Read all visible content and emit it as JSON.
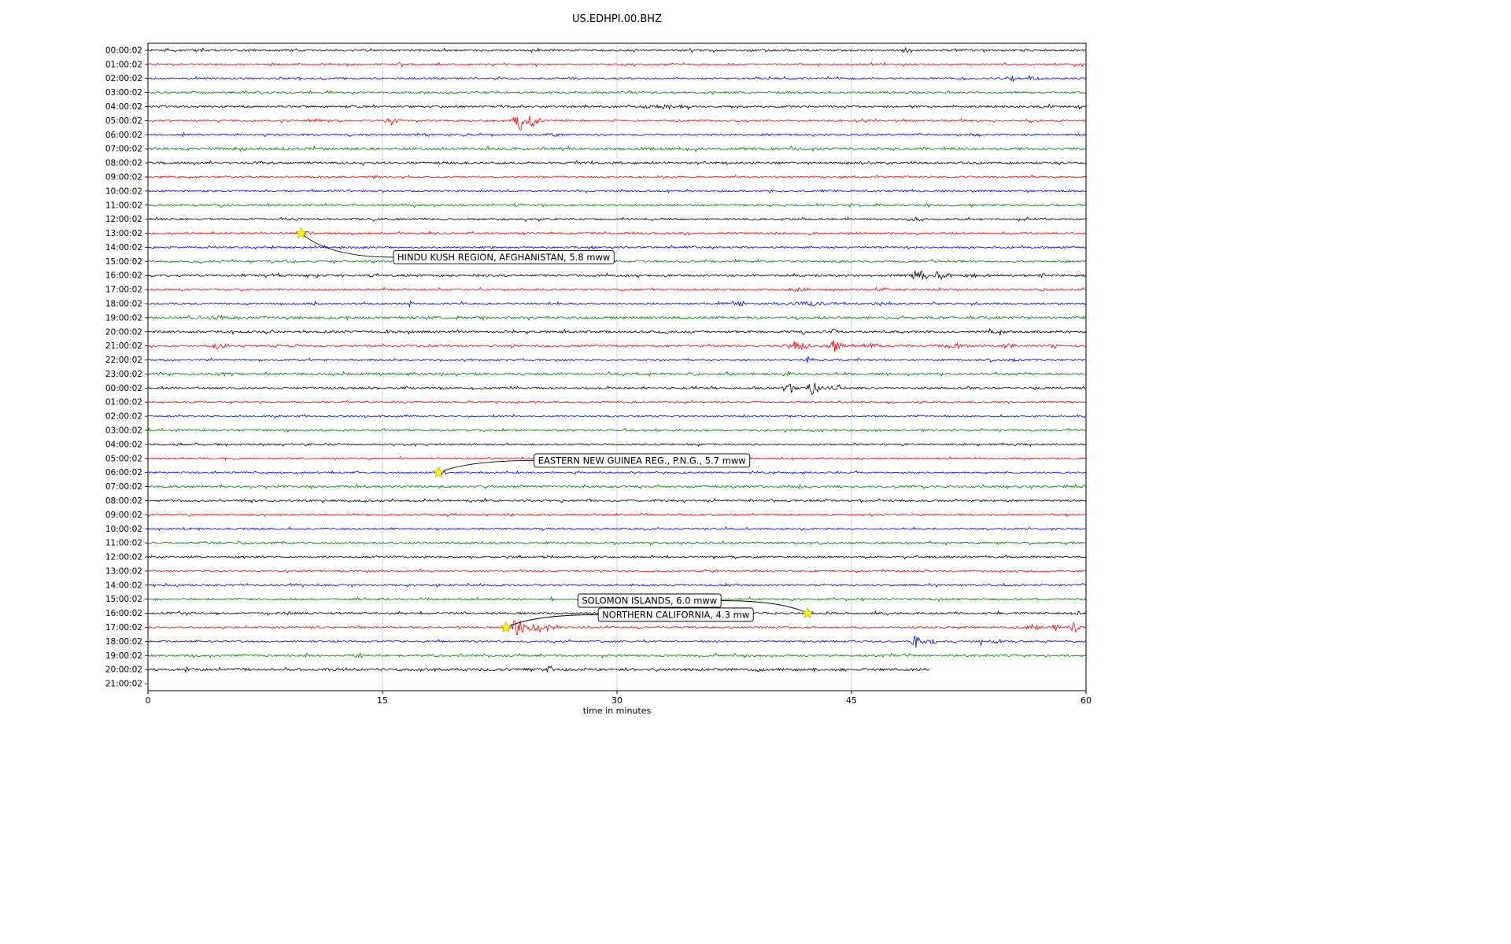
{
  "title": "US.EDHPI.00.BHZ",
  "xlabel": "time in minutes",
  "chart_data": {
    "type": "line",
    "subtype": "seismogram-dayplot",
    "title": "US.EDHPI.00.BHZ",
    "xlabel": "time in minutes",
    "xlim": [
      0,
      60
    ],
    "x_ticks": [
      0,
      15,
      30,
      45,
      60
    ],
    "grid": true,
    "trace_colors_cycle": [
      "#000000",
      "#ff0000",
      "#0000ff",
      "#008000"
    ],
    "star_color": "#ffff00",
    "rows": [
      {
        "label": "00:00:02",
        "color": "#000000",
        "base": 1.2,
        "bursts": [
          {
            "m": 48.6,
            "a": 2.5,
            "s": 0.3
          },
          {
            "m": 56.2,
            "a": 2.0,
            "s": 0.2
          }
        ]
      },
      {
        "label": "01:00:02",
        "color": "#ff0000",
        "base": 1.1,
        "bursts": [
          {
            "m": 16.2,
            "a": 4.0,
            "s": 0.12
          }
        ]
      },
      {
        "label": "02:00:02",
        "color": "#0000ff",
        "base": 1.1,
        "bursts": [
          {
            "m": 55.3,
            "a": 7.0,
            "s": 0.08
          },
          {
            "m": 56.5,
            "a": 3.0,
            "s": 0.3
          }
        ]
      },
      {
        "label": "03:00:02",
        "color": "#008000",
        "base": 1.2,
        "bursts": []
      },
      {
        "label": "04:00:02",
        "color": "#000000",
        "base": 1.2,
        "bursts": [
          {
            "m": 32.5,
            "a": 2.5,
            "s": 1.2
          },
          {
            "m": 34.5,
            "a": 11.0,
            "s": 0.05
          },
          {
            "m": 57.6,
            "a": 3.5,
            "s": 0.25
          },
          {
            "m": 59.4,
            "a": 3.5,
            "s": 0.2
          }
        ]
      },
      {
        "label": "05:00:02",
        "color": "#ff0000",
        "base": 1.1,
        "bursts": [
          {
            "m": 10.5,
            "a": 2.0,
            "s": 0.3
          },
          {
            "m": 15.6,
            "a": 6.0,
            "s": 0.25
          },
          {
            "m": 23.7,
            "a": 15.0,
            "s": 0.22
          },
          {
            "m": 24.6,
            "a": 9.0,
            "s": 0.3
          }
        ]
      },
      {
        "label": "06:00:02",
        "color": "#0000ff",
        "base": 1.1,
        "bursts": [
          {
            "m": 26.0,
            "a": 2.0,
            "s": 0.4
          }
        ]
      },
      {
        "label": "07:00:02",
        "color": "#008000",
        "base": 1.5,
        "bursts": [
          {
            "m": 26.0,
            "a": 2.5,
            "s": 0.8
          }
        ]
      },
      {
        "label": "08:00:02",
        "color": "#000000",
        "base": 1.3,
        "bursts": []
      },
      {
        "label": "09:00:02",
        "color": "#ff0000",
        "base": 1.1,
        "bursts": []
      },
      {
        "label": "10:00:02",
        "color": "#0000ff",
        "base": 1.1,
        "bursts": []
      },
      {
        "label": "11:00:02",
        "color": "#008000",
        "base": 1.2,
        "bursts": []
      },
      {
        "label": "12:00:02",
        "color": "#000000",
        "base": 1.2,
        "bursts": [
          {
            "m": 49.0,
            "a": 2.0,
            "s": 0.3
          }
        ]
      },
      {
        "label": "13:00:02",
        "color": "#ff0000",
        "base": 1.1,
        "bursts": [
          {
            "m": 10.2,
            "a": 2.0,
            "s": 0.3
          }
        ]
      },
      {
        "label": "14:00:02",
        "color": "#0000ff",
        "base": 1.1,
        "bursts": []
      },
      {
        "label": "15:00:02",
        "color": "#008000",
        "base": 1.2,
        "bursts": []
      },
      {
        "label": "16:00:02",
        "color": "#000000",
        "base": 1.3,
        "bursts": [
          {
            "m": 49.4,
            "a": 8.0,
            "s": 0.35
          },
          {
            "m": 50.6,
            "a": 5.0,
            "s": 0.3
          },
          {
            "m": 53.0,
            "a": 2.0,
            "s": 0.5
          },
          {
            "m": 57.2,
            "a": 4.0,
            "s": 0.1
          }
        ]
      },
      {
        "label": "17:00:02",
        "color": "#ff0000",
        "base": 1.1,
        "bursts": [
          {
            "m": 41.6,
            "a": 2.5,
            "s": 0.4
          },
          {
            "m": 47.0,
            "a": 2.5,
            "s": 0.3
          },
          {
            "m": 57.3,
            "a": 2.5,
            "s": 0.2
          }
        ]
      },
      {
        "label": "18:00:02",
        "color": "#0000ff",
        "base": 1.1,
        "bursts": [
          {
            "m": 10.7,
            "a": 4.5,
            "s": 0.07
          },
          {
            "m": 16.8,
            "a": 2.5,
            "s": 0.15
          },
          {
            "m": 37.6,
            "a": 3.5,
            "s": 0.5
          },
          {
            "m": 42.0,
            "a": 2.5,
            "s": 1.2
          },
          {
            "m": 47.0,
            "a": 2.0,
            "s": 0.6
          }
        ]
      },
      {
        "label": "19:00:02",
        "color": "#008000",
        "base": 1.5,
        "bursts": [
          {
            "m": 5.0,
            "a": 2.0,
            "s": 1.0
          },
          {
            "m": 18.2,
            "a": 2.0,
            "s": 0.3
          }
        ]
      },
      {
        "label": "20:00:02",
        "color": "#000000",
        "base": 1.3,
        "bursts": [
          {
            "m": 33.0,
            "a": 2.0,
            "s": 0.3
          },
          {
            "m": 41.9,
            "a": 5.0,
            "s": 0.12
          },
          {
            "m": 43.9,
            "a": 4.0,
            "s": 0.1
          },
          {
            "m": 53.9,
            "a": 5.0,
            "s": 0.12
          },
          {
            "m": 54.6,
            "a": 3.0,
            "s": 0.2
          }
        ]
      },
      {
        "label": "21:00:02",
        "color": "#ff0000",
        "base": 1.2,
        "bursts": [
          {
            "m": 4.5,
            "a": 4.5,
            "s": 0.35
          },
          {
            "m": 41.6,
            "a": 6.0,
            "s": 0.45
          },
          {
            "m": 43.9,
            "a": 7.0,
            "s": 0.35
          },
          {
            "m": 46.3,
            "a": 4.0,
            "s": 0.3
          },
          {
            "m": 51.5,
            "a": 3.0,
            "s": 0.7
          },
          {
            "m": 55.0,
            "a": 3.0,
            "s": 0.4
          },
          {
            "m": 58.0,
            "a": 2.5,
            "s": 0.3
          }
        ]
      },
      {
        "label": "22:00:02",
        "color": "#0000ff",
        "base": 1.1,
        "bursts": [
          {
            "m": 42.2,
            "a": 7.0,
            "s": 0.08
          },
          {
            "m": 53.9,
            "a": 4.0,
            "s": 0.12
          },
          {
            "m": 55.5,
            "a": 2.0,
            "s": 0.3
          }
        ]
      },
      {
        "label": "23:00:02",
        "color": "#008000",
        "base": 1.3,
        "bursts": [
          {
            "m": 5.0,
            "a": 2.0,
            "s": 0.5
          },
          {
            "m": 17.0,
            "a": 2.0,
            "s": 0.4
          },
          {
            "m": 41.0,
            "a": 2.5,
            "s": 0.4
          }
        ]
      },
      {
        "label": "00:00:02",
        "color": "#000000",
        "base": 1.2,
        "bursts": [
          {
            "m": 14.7,
            "a": 3.5,
            "s": 0.08
          },
          {
            "m": 23.3,
            "a": 3.5,
            "s": 0.08
          },
          {
            "m": 36.2,
            "a": 3.5,
            "s": 0.1
          },
          {
            "m": 41.0,
            "a": 5.0,
            "s": 0.3
          },
          {
            "m": 42.6,
            "a": 8.0,
            "s": 0.3
          },
          {
            "m": 44.0,
            "a": 3.5,
            "s": 0.3
          }
        ]
      },
      {
        "label": "01:00:02",
        "color": "#ff0000",
        "base": 1.0,
        "bursts": []
      },
      {
        "label": "02:00:02",
        "color": "#0000ff",
        "base": 1.0,
        "bursts": []
      },
      {
        "label": "03:00:02",
        "color": "#008000",
        "base": 1.2,
        "bursts": []
      },
      {
        "label": "04:00:02",
        "color": "#000000",
        "base": 1.1,
        "bursts": []
      },
      {
        "label": "05:00:02",
        "color": "#ff0000",
        "base": 1.0,
        "bursts": []
      },
      {
        "label": "06:00:02",
        "color": "#0000ff",
        "base": 1.0,
        "bursts": [
          {
            "m": 18.9,
            "a": 2.0,
            "s": 0.2
          }
        ]
      },
      {
        "label": "07:00:02",
        "color": "#008000",
        "base": 1.3,
        "bursts": []
      },
      {
        "label": "08:00:02",
        "color": "#000000",
        "base": 1.2,
        "bursts": []
      },
      {
        "label": "09:00:02",
        "color": "#ff0000",
        "base": 1.0,
        "bursts": []
      },
      {
        "label": "10:00:02",
        "color": "#0000ff",
        "base": 1.0,
        "bursts": []
      },
      {
        "label": "11:00:02",
        "color": "#008000",
        "base": 1.2,
        "bursts": []
      },
      {
        "label": "12:00:02",
        "color": "#000000",
        "base": 1.1,
        "bursts": []
      },
      {
        "label": "13:00:02",
        "color": "#ff0000",
        "base": 1.0,
        "bursts": []
      },
      {
        "label": "14:00:02",
        "color": "#0000ff",
        "base": 1.1,
        "bursts": []
      },
      {
        "label": "15:00:02",
        "color": "#008000",
        "base": 1.2,
        "bursts": []
      },
      {
        "label": "16:00:02",
        "color": "#000000",
        "base": 1.2,
        "bursts": [
          {
            "m": 59.4,
            "a": 3.0,
            "s": 0.15
          }
        ]
      },
      {
        "label": "17:00:02",
        "color": "#ff0000",
        "base": 1.1,
        "bursts": [
          {
            "m": 23.6,
            "a": 11.0,
            "s": 0.35
          },
          {
            "m": 24.7,
            "a": 6.0,
            "s": 0.5
          },
          {
            "m": 25.8,
            "a": 3.5,
            "s": 0.5
          },
          {
            "m": 56.6,
            "a": 5.0,
            "s": 0.35
          },
          {
            "m": 58.0,
            "a": 4.0,
            "s": 0.3
          },
          {
            "m": 59.3,
            "a": 9.0,
            "s": 0.12
          }
        ]
      },
      {
        "label": "18:00:02",
        "color": "#0000ff",
        "base": 1.1,
        "bursts": [
          {
            "m": 49.1,
            "a": 8.0,
            "s": 0.18
          },
          {
            "m": 50.1,
            "a": 4.0,
            "s": 0.3
          },
          {
            "m": 53.3,
            "a": 7.0,
            "s": 0.12
          },
          {
            "m": 54.2,
            "a": 3.0,
            "s": 0.3
          }
        ]
      },
      {
        "label": "19:00:02",
        "color": "#008000",
        "base": 1.3,
        "bursts": [
          {
            "m": 13.3,
            "a": 2.5,
            "s": 0.25
          }
        ]
      },
      {
        "label": "20:00:02",
        "color": "#000000",
        "base": 1.6,
        "end": 50,
        "bursts": [
          {
            "m": 2.5,
            "a": 4.0,
            "s": 0.1
          },
          {
            "m": 25.6,
            "a": 6.0,
            "s": 0.1
          },
          {
            "m": 39.0,
            "a": 3.0,
            "s": 0.2
          }
        ]
      },
      {
        "label": "21:00:02",
        "color": "#ff0000",
        "base": 1.0,
        "end": 0,
        "bursts": []
      }
    ],
    "annotations": [
      {
        "label": "HINDU KUSH REGION, AFGHANISTAN, 5.8 mww",
        "star_min": 9.8,
        "star_row": 13,
        "box_min": 15.7,
        "box_row": 14.7
      },
      {
        "label": "EASTERN NEW GUINEA REG., P.N.G., 5.7 mww",
        "star_min": 18.6,
        "star_row": 30,
        "box_min": 24.7,
        "box_row": 29.15
      },
      {
        "label": "SOLOMON ISLANDS, 6.0 mww",
        "star_min": 42.2,
        "star_row": 40,
        "box_min": 27.5,
        "box_row": 39.1
      },
      {
        "label": "NORTHERN CALIFORNIA, 4.3 mw",
        "star_min": 22.9,
        "star_row": 41,
        "box_min": 28.8,
        "box_row": 40.1
      }
    ]
  }
}
